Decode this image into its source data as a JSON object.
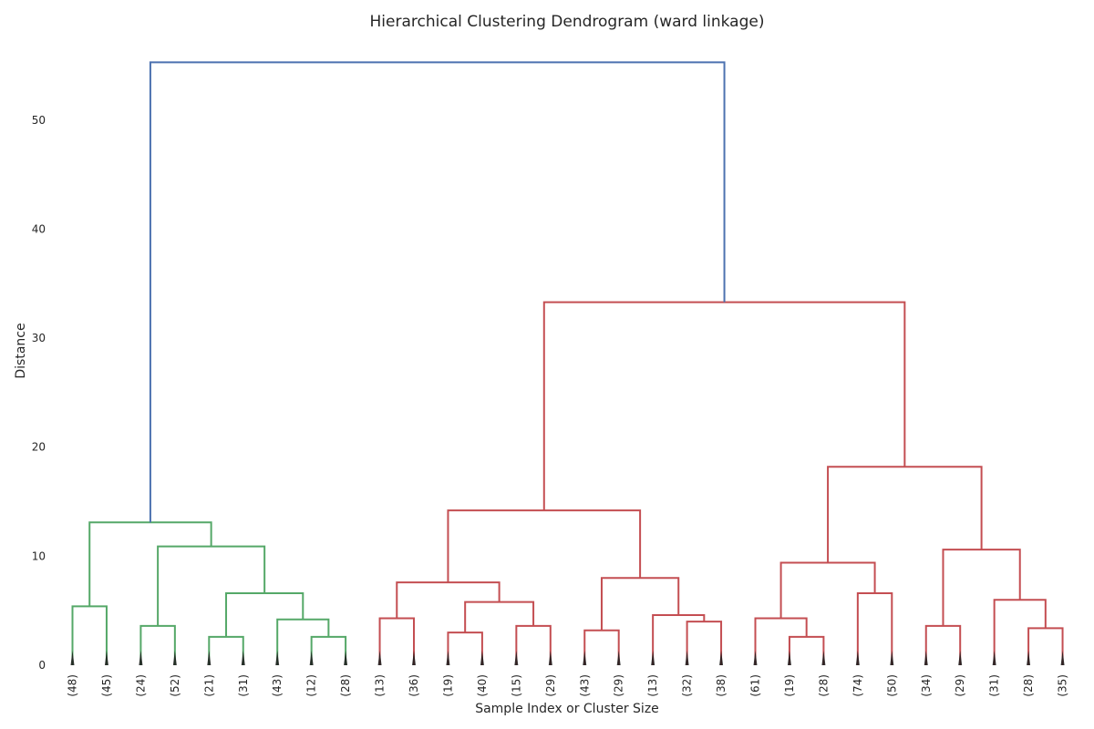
{
  "chart_data": {
    "type": "dendrogram",
    "title": "Hierarchical Clustering Dendrogram (ward linkage)",
    "xlabel": "Sample Index or Cluster Size",
    "ylabel": "Distance",
    "ylim": [
      0,
      57
    ],
    "yticks": [
      0,
      10,
      20,
      30,
      40,
      50
    ],
    "grid": false,
    "leaves": [
      "(48)",
      "(45)",
      "(24)",
      "(52)",
      "(21)",
      "(31)",
      "(43)",
      "(12)",
      "(28)",
      "(13)",
      "(36)",
      "(19)",
      "(40)",
      "(15)",
      "(29)",
      "(43)",
      "(29)",
      "(13)",
      "(32)",
      "(38)",
      "(61)",
      "(19)",
      "(28)",
      "(74)",
      "(50)",
      "(34)",
      "(29)",
      "(31)",
      "(28)",
      "(35)"
    ],
    "colors": {
      "cluster_1": "#55a868",
      "cluster_2": "#c44e52",
      "root": "#4c72b0"
    },
    "merges": [
      {
        "id": "m1",
        "left": "L0",
        "right": "L1",
        "height": 5.4,
        "color": "cluster_1"
      },
      {
        "id": "m2",
        "left": "L2",
        "right": "L3",
        "height": 3.6,
        "color": "cluster_1"
      },
      {
        "id": "m3",
        "left": "L4",
        "right": "L5",
        "height": 2.6,
        "color": "cluster_1"
      },
      {
        "id": "m4",
        "left": "L7",
        "right": "L8",
        "height": 2.6,
        "color": "cluster_1"
      },
      {
        "id": "m5",
        "left": "L6",
        "right": "m4",
        "height": 4.2,
        "color": "cluster_1"
      },
      {
        "id": "m6",
        "left": "m3",
        "right": "m5",
        "height": 6.6,
        "color": "cluster_1"
      },
      {
        "id": "m7",
        "left": "m2",
        "right": "m6",
        "height": 10.9,
        "color": "cluster_1"
      },
      {
        "id": "m8",
        "left": "m1",
        "right": "m7",
        "height": 13.1,
        "color": "cluster_1"
      },
      {
        "id": "m9",
        "left": "L9",
        "right": "L10",
        "height": 4.3,
        "color": "cluster_2"
      },
      {
        "id": "m10",
        "left": "L11",
        "right": "L12",
        "height": 3.0,
        "color": "cluster_2"
      },
      {
        "id": "m11",
        "left": "L13",
        "right": "L14",
        "height": 3.6,
        "color": "cluster_2"
      },
      {
        "id": "m12",
        "left": "m10",
        "right": "m11",
        "height": 5.8,
        "color": "cluster_2"
      },
      {
        "id": "m13",
        "left": "m9",
        "right": "m12",
        "height": 7.6,
        "color": "cluster_2"
      },
      {
        "id": "m14",
        "left": "L15",
        "right": "L16",
        "height": 3.2,
        "color": "cluster_2"
      },
      {
        "id": "m15",
        "left": "L18",
        "right": "L19",
        "height": 4.0,
        "color": "cluster_2"
      },
      {
        "id": "m16",
        "left": "L17",
        "right": "m15",
        "height": 4.6,
        "color": "cluster_2"
      },
      {
        "id": "m17",
        "left": "m14",
        "right": "m16",
        "height": 8.0,
        "color": "cluster_2"
      },
      {
        "id": "m18",
        "left": "m13",
        "right": "m17",
        "height": 14.2,
        "color": "cluster_2"
      },
      {
        "id": "m19",
        "left": "L21",
        "right": "L22",
        "height": 2.6,
        "color": "cluster_2"
      },
      {
        "id": "m20",
        "left": "L20",
        "right": "m19",
        "height": 4.3,
        "color": "cluster_2"
      },
      {
        "id": "m21",
        "left": "L23",
        "right": "L24",
        "height": 6.6,
        "color": "cluster_2"
      },
      {
        "id": "m22",
        "left": "m20",
        "right": "m21",
        "height": 9.4,
        "color": "cluster_2"
      },
      {
        "id": "m23",
        "left": "L25",
        "right": "L26",
        "height": 3.6,
        "color": "cluster_2"
      },
      {
        "id": "m24",
        "left": "L28",
        "right": "L29",
        "height": 3.4,
        "color": "cluster_2"
      },
      {
        "id": "m25",
        "left": "L27",
        "right": "m24",
        "height": 6.0,
        "color": "cluster_2"
      },
      {
        "id": "m26",
        "left": "m23",
        "right": "m25",
        "height": 10.6,
        "color": "cluster_2"
      },
      {
        "id": "m27",
        "left": "m22",
        "right": "m26",
        "height": 18.2,
        "color": "cluster_2"
      },
      {
        "id": "m28",
        "left": "m18",
        "right": "m27",
        "height": 33.3,
        "color": "cluster_2"
      },
      {
        "id": "m29",
        "left": "m8",
        "right": "m28",
        "height": 55.3,
        "color": "root"
      }
    ]
  }
}
